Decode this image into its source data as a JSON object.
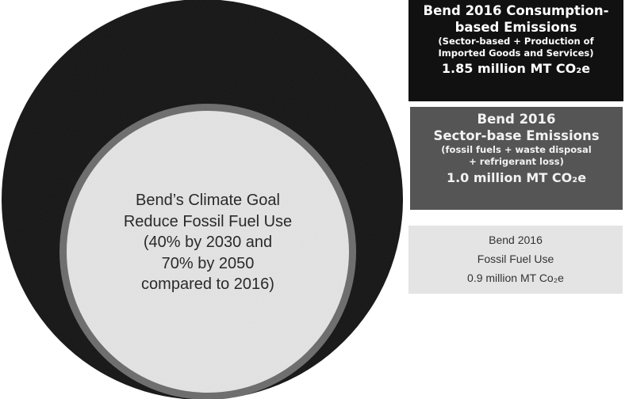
{
  "colors": {
    "consumption": "#111111",
    "sector": "#555555",
    "sector_ring": "#6a6a6a",
    "fossil": "#e4e4e4",
    "background": "#ffffff"
  },
  "legend": {
    "consumption": {
      "line1": "Bend 2016 Consumption-",
      "line2": "based Emissions",
      "line3": "(Sector-based + Production of",
      "line4": "Imported Goods and Services)",
      "line5": "1.85 million MT CO₂e"
    },
    "sector": {
      "line1": "Bend 2016",
      "line2": "Sector-base Emissions",
      "line3": "(fossil fuels + waste disposal",
      "line4": "+ refrigerant loss)",
      "line5": "1.0 million MT CO₂e"
    },
    "fossil": {
      "line1": "Bend 2016",
      "line2": "Fossil Fuel Use",
      "line3": "0.9 million MT Co₂e"
    }
  },
  "goal": {
    "line1": "Bend’s Climate Goal",
    "line2": "Reduce Fossil Fuel Use",
    "line3": "(40% by 2030 and",
    "line4": "70% by 2050",
    "line5": "compared to 2016)"
  }
}
